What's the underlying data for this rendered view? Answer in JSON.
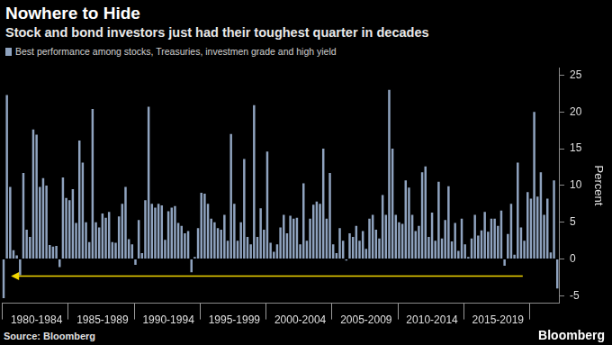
{
  "chart_data": {
    "type": "bar",
    "title": "Nowhere to Hide",
    "subtitle": "Stock and bond investors just had their toughest quarter in decades",
    "y_label": "Percent",
    "source": "Source: Bloomberg",
    "credit": "Bloomberg",
    "legend": "top-left",
    "grid": false,
    "categories": [
      null,
      null,
      null,
      null,
      null,
      null,
      null,
      null,
      null,
      null,
      "1980-1984",
      null,
      null,
      null,
      null,
      null,
      null,
      null,
      null,
      null,
      null,
      null,
      null,
      null,
      null,
      null,
      null,
      null,
      null,
      null,
      "1985-1989",
      null,
      null,
      null,
      null,
      null,
      null,
      null,
      null,
      null,
      null,
      null,
      null,
      null,
      null,
      null,
      null,
      null,
      null,
      null,
      "1990-1994",
      null,
      null,
      null,
      null,
      null,
      null,
      null,
      null,
      null,
      null,
      null,
      null,
      null,
      null,
      null,
      null,
      null,
      null,
      null,
      "1995-1999",
      null,
      null,
      null,
      null,
      null,
      null,
      null,
      null,
      null,
      null,
      null,
      null,
      null,
      null,
      null,
      null,
      null,
      null,
      null,
      "2000-2004",
      null,
      null,
      null,
      null,
      null,
      null,
      null,
      null,
      null,
      null,
      null,
      null,
      null,
      null,
      null,
      null,
      null,
      null,
      null,
      "2005-2009",
      null,
      null,
      null,
      null,
      null,
      null,
      null,
      null,
      null,
      null,
      null,
      null,
      null,
      null,
      null,
      null,
      null,
      null,
      null,
      "2010-2014",
      null,
      null,
      null,
      null,
      null,
      null,
      null,
      null,
      null,
      null,
      null,
      null,
      null,
      null,
      null,
      null,
      null,
      null,
      null,
      "2015-2019",
      null,
      null,
      null,
      null,
      null,
      null,
      null,
      null,
      null,
      null,
      null,
      null,
      null,
      null,
      null,
      null,
      null,
      null
    ],
    "series": [
      {
        "name": "Best performance among stocks, Treasuries, investmen grade and high yield",
        "color": "#8fa3bf",
        "values": [
          -5.3,
          22.3,
          9.8,
          1.2,
          0.5,
          -2.2,
          11.7,
          4.0,
          3.0,
          17.6,
          16.9,
          9.8,
          11.0,
          10.0,
          1.9,
          1.7,
          1.8,
          -1.1,
          11.1,
          8.3,
          8.0,
          9.5,
          4.9,
          16.1,
          13.1,
          5.0,
          2.3,
          20.4,
          5.0,
          4.3,
          6.2,
          5.6,
          6.4,
          2.3,
          2.2,
          5.8,
          7.5,
          9.8,
          2.7,
          2.0,
          -0.8,
          5.3,
          0.8,
          8.0,
          20.7,
          7.5,
          7.0,
          7.5,
          7.3,
          2.6,
          6.5,
          7.0,
          7.2,
          4.9,
          4.5,
          3.5,
          3.8,
          -1.8,
          0.3,
          4.2,
          9.0,
          8.9,
          7.5,
          5.5,
          5.0,
          4.2,
          4.0,
          6.0,
          2.5,
          17.0,
          7.5,
          2.5,
          5.0,
          13.6,
          3.0,
          2.0,
          20.9,
          3.0,
          6.9,
          4.0,
          14.6,
          2.2,
          1.0,
          2.0,
          4.3,
          6.0,
          3.5,
          5.9,
          5.5,
          5.6,
          2.0,
          10.3,
          2.5,
          5.5,
          7.4,
          7.8,
          7.5,
          15.0,
          5.5,
          11.7,
          2.0,
          0.8,
          4.2,
          2.5,
          -0.2,
          3.5,
          3.0,
          4.5,
          2.5,
          3.8,
          1.4,
          5.5,
          6.0,
          4.0,
          2.8,
          8.7,
          6.0,
          23.0,
          15.0,
          6.0,
          5.0,
          4.8,
          10.7,
          9.7,
          6.0,
          3.8,
          4.5,
          11.8,
          12.6,
          3.0,
          6.3,
          2.5,
          10.5,
          2.8,
          5.3,
          9.9,
          2.4,
          4.9,
          1.1,
          5.5,
          2.0,
          0.3,
          2.8,
          6.0,
          3.2,
          3.9,
          6.4,
          3.7,
          5.5,
          5.5,
          4.5,
          6.6,
          -0.9,
          3.4,
          7.5,
          0.6,
          13.1,
          4.3,
          2.5,
          9.1,
          8.2,
          20.0,
          8.5,
          11.8,
          6.0,
          8.2,
          0.9,
          10.7,
          -4.0
        ]
      }
    ],
    "ylim": [
      -6,
      26
    ],
    "yticks": [
      -5,
      0,
      5,
      10,
      15,
      20,
      25
    ]
  }
}
